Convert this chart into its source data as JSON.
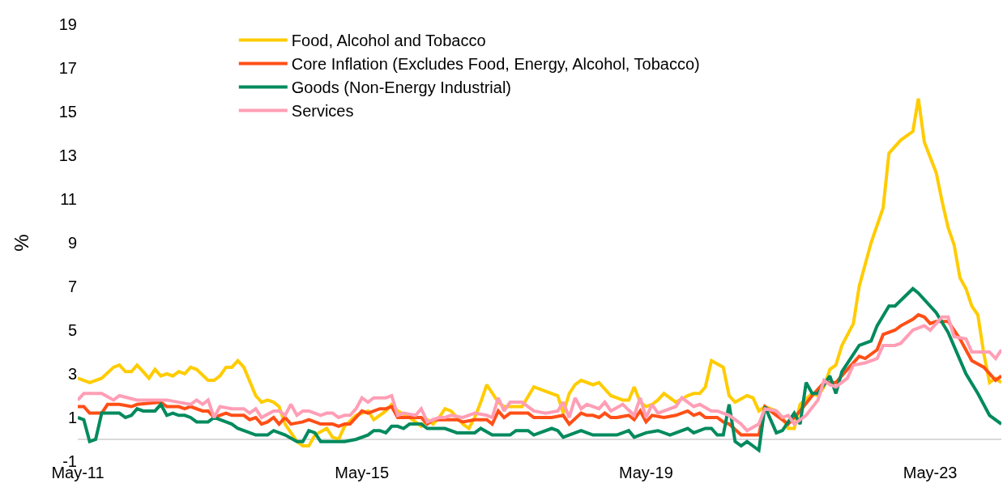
{
  "chart_data": {
    "type": "line",
    "ylabel": "%",
    "xlim": [
      "2011-05",
      "2024-05"
    ],
    "xticks": [
      {
        "value": "2011-05",
        "label": "May-11"
      },
      {
        "value": "2015-05",
        "label": "May-15"
      },
      {
        "value": "2019-05",
        "label": "May-19"
      },
      {
        "value": "2023-05",
        "label": "May-23"
      }
    ],
    "ylim": [
      -1,
      19
    ],
    "yticks": [
      -1,
      1,
      3,
      5,
      7,
      9,
      11,
      13,
      15,
      17,
      19
    ],
    "legend": "top left",
    "series": [
      {
        "name": "Food, Alcohol and Tobacco",
        "color": "#ffcc00",
        "x": [
          "2011-05",
          "2011-07",
          "2011-09",
          "2011-11",
          "2011-12",
          "2012-01",
          "2012-02",
          "2012-03",
          "2012-04",
          "2012-05",
          "2012-06",
          "2012-07",
          "2012-08",
          "2012-09",
          "2012-10",
          "2012-11",
          "2012-12",
          "2013-01",
          "2013-03",
          "2013-04",
          "2013-05",
          "2013-06",
          "2013-07",
          "2013-08",
          "2013-09",
          "2013-11",
          "2013-12",
          "2014-01",
          "2014-02",
          "2014-03",
          "2014-04",
          "2014-06",
          "2014-07",
          "2014-08",
          "2014-09",
          "2014-11",
          "2014-12",
          "2015-01",
          "2015-02",
          "2015-04",
          "2015-06",
          "2015-07",
          "2015-09",
          "2015-10",
          "2015-11",
          "2016-01",
          "2016-03",
          "2016-04",
          "2016-05",
          "2016-06",
          "2016-07",
          "2016-08",
          "2016-10",
          "2016-11",
          "2016-12",
          "2017-01",
          "2017-02",
          "2017-04",
          "2017-05",
          "2017-07",
          "2017-08",
          "2017-10",
          "2017-12",
          "2018-02",
          "2018-03",
          "2018-04",
          "2018-05",
          "2018-06",
          "2018-08",
          "2018-09",
          "2018-11",
          "2019-01",
          "2019-02",
          "2019-03",
          "2019-04",
          "2019-05",
          "2019-06",
          "2019-07",
          "2019-08",
          "2019-10",
          "2019-12",
          "2020-01",
          "2020-02",
          "2020-03",
          "2020-04",
          "2020-06",
          "2020-07",
          "2020-08",
          "2020-10",
          "2020-11",
          "2020-12",
          "2021-01",
          "2021-03",
          "2021-04",
          "2021-05",
          "2021-06",
          "2021-07",
          "2021-09",
          "2021-10",
          "2021-11",
          "2021-12",
          "2022-01",
          "2022-02",
          "2022-04",
          "2022-05",
          "2022-07",
          "2022-09",
          "2022-10",
          "2022-12",
          "2023-02",
          "2023-03",
          "2023-04",
          "2023-06",
          "2023-07",
          "2023-08",
          "2023-09",
          "2023-10",
          "2023-11",
          "2023-12",
          "2024-01",
          "2024-02",
          "2024-03",
          "2024-04",
          "2024-05"
        ],
        "values": [
          2.8,
          2.6,
          2.8,
          3.3,
          3.4,
          3.1,
          3.1,
          3.4,
          3.1,
          2.8,
          3.2,
          2.9,
          3.0,
          2.9,
          3.1,
          3.0,
          3.3,
          3.2,
          2.7,
          2.7,
          2.9,
          3.3,
          3.3,
          3.6,
          3.3,
          2.0,
          1.7,
          1.8,
          1.7,
          1.5,
          0.7,
          -0.1,
          -0.3,
          -0.3,
          0.2,
          0.5,
          0.1,
          0.0,
          0.6,
          1.1,
          1.3,
          0.9,
          1.3,
          1.6,
          1.3,
          1.0,
          0.6,
          0.9,
          0.7,
          1.0,
          1.4,
          1.3,
          0.7,
          0.5,
          1.0,
          1.7,
          2.5,
          1.7,
          1.5,
          1.5,
          1.5,
          2.4,
          2.2,
          2.0,
          1.2,
          2.1,
          2.5,
          2.7,
          2.5,
          2.6,
          2.0,
          1.8,
          1.8,
          2.4,
          1.7,
          1.5,
          1.6,
          1.8,
          2.1,
          1.7,
          2.0,
          2.1,
          2.1,
          2.4,
          3.6,
          3.3,
          2.0,
          1.7,
          2.0,
          1.9,
          1.3,
          1.5,
          1.3,
          1.0,
          0.5,
          0.5,
          1.6,
          2.1,
          2.0,
          2.4,
          3.2,
          3.4,
          4.3,
          5.3,
          7.0,
          9.0,
          10.6,
          13.1,
          13.7,
          14.1,
          15.6,
          13.6,
          12.2,
          10.9,
          9.7,
          8.9,
          7.4,
          6.9,
          6.1,
          5.7,
          3.9,
          2.6,
          2.8,
          2.6
        ]
      },
      {
        "name": "Core Inflation (Excludes Food, Energy, Alcohol, Tobacco)",
        "color": "#ff4f17",
        "x": [
          "2011-05",
          "2011-06",
          "2011-07",
          "2011-09",
          "2011-10",
          "2011-12",
          "2012-02",
          "2012-03",
          "2012-07",
          "2012-08",
          "2012-10",
          "2012-11",
          "2012-12",
          "2013-02",
          "2013-03",
          "2013-04",
          "2013-06",
          "2013-07",
          "2013-09",
          "2013-10",
          "2013-11",
          "2013-12",
          "2014-01",
          "2014-02",
          "2014-03",
          "2014-04",
          "2014-05",
          "2014-07",
          "2014-08",
          "2014-10",
          "2014-12",
          "2015-01",
          "2015-02",
          "2015-03",
          "2015-05",
          "2015-06",
          "2015-08",
          "2015-09",
          "2015-10",
          "2015-11",
          "2015-12",
          "2016-02",
          "2016-03",
          "2016-04",
          "2016-05",
          "2016-07",
          "2016-09",
          "2016-10",
          "2016-12",
          "2017-02",
          "2017-03",
          "2017-04",
          "2017-05",
          "2017-06",
          "2017-09",
          "2017-10",
          "2017-12",
          "2018-01",
          "2018-03",
          "2018-04",
          "2018-06",
          "2018-07",
          "2018-08",
          "2018-09",
          "2018-10",
          "2018-11",
          "2018-12",
          "2019-02",
          "2019-03",
          "2019-04",
          "2019-05",
          "2019-06",
          "2019-08",
          "2019-10",
          "2019-12",
          "2020-01",
          "2020-02",
          "2020-03",
          "2020-05",
          "2020-06",
          "2020-07",
          "2020-09",
          "2020-12",
          "2021-01",
          "2021-03",
          "2021-05",
          "2021-06",
          "2021-07",
          "2021-09",
          "2021-11",
          "2022-01",
          "2022-03",
          "2022-05",
          "2022-06",
          "2022-08",
          "2022-09",
          "2022-11",
          "2022-12",
          "2023-02",
          "2023-03",
          "2023-04",
          "2023-05",
          "2023-06",
          "2023-08",
          "2023-10",
          "2023-12",
          "2024-02",
          "2024-04",
          "2024-05"
        ],
        "values": [
          1.5,
          1.5,
          1.2,
          1.2,
          1.6,
          1.6,
          1.5,
          1.6,
          1.7,
          1.5,
          1.5,
          1.4,
          1.5,
          1.3,
          1.3,
          1.0,
          1.2,
          1.1,
          1.1,
          0.9,
          1.0,
          0.7,
          0.8,
          1.0,
          0.7,
          1.0,
          0.7,
          0.8,
          0.9,
          0.7,
          0.7,
          0.6,
          0.7,
          0.7,
          1.3,
          1.2,
          1.4,
          1.4,
          1.5,
          1.0,
          1.0,
          1.0,
          1.0,
          0.7,
          0.9,
          0.9,
          0.9,
          0.8,
          0.9,
          0.9,
          0.7,
          1.3,
          1.0,
          1.2,
          1.2,
          1.0,
          1.0,
          1.0,
          1.1,
          0.7,
          1.2,
          1.1,
          1.1,
          1.0,
          1.2,
          1.0,
          1.0,
          1.1,
          0.9,
          1.3,
          0.8,
          1.1,
          1.0,
          1.1,
          1.3,
          1.1,
          1.2,
          1.0,
          1.0,
          0.8,
          0.7,
          0.2,
          0.2,
          1.5,
          1.1,
          0.7,
          1.0,
          1.3,
          2.0,
          2.6,
          2.6,
          3.2,
          3.8,
          3.7,
          4.1,
          4.8,
          5.0,
          5.2,
          5.5,
          5.7,
          5.6,
          5.3,
          5.4,
          5.4,
          4.6,
          3.6,
          3.3,
          2.7,
          2.9
        ]
      },
      {
        "name": "Goods (Non-Energy Industrial)",
        "color": "#008a5e",
        "x": [
          "2011-05",
          "2011-06",
          "2011-07",
          "2011-08",
          "2011-09",
          "2011-12",
          "2012-01",
          "2012-02",
          "2012-03",
          "2012-04",
          "2012-06",
          "2012-07",
          "2012-08",
          "2012-09",
          "2012-10",
          "2012-11",
          "2012-12",
          "2013-01",
          "2013-03",
          "2013-04",
          "2013-05",
          "2013-06",
          "2013-07",
          "2013-08",
          "2013-09",
          "2013-11",
          "2014-01",
          "2014-02",
          "2014-04",
          "2014-06",
          "2014-07",
          "2014-08",
          "2014-09",
          "2014-10",
          "2014-12",
          "2015-02",
          "2015-04",
          "2015-06",
          "2015-07",
          "2015-08",
          "2015-09",
          "2015-10",
          "2015-11",
          "2015-12",
          "2016-01",
          "2016-03",
          "2016-04",
          "2016-06",
          "2016-07",
          "2016-09",
          "2016-12",
          "2017-01",
          "2017-03",
          "2017-06",
          "2017-07",
          "2017-09",
          "2017-10",
          "2018-01",
          "2018-02",
          "2018-03",
          "2018-04",
          "2018-06",
          "2018-07",
          "2018-08",
          "2018-12",
          "2019-02",
          "2019-03",
          "2019-05",
          "2019-07",
          "2019-09",
          "2019-12",
          "2020-01",
          "2020-03",
          "2020-04",
          "2020-05",
          "2020-06",
          "2020-07",
          "2020-08",
          "2020-09",
          "2020-10",
          "2020-12",
          "2021-01",
          "2021-03",
          "2021-04",
          "2021-06",
          "2021-07",
          "2021-08",
          "2021-09",
          "2021-10",
          "2021-12",
          "2022-01",
          "2022-02",
          "2022-05",
          "2022-07",
          "2022-08",
          "2022-10",
          "2022-11",
          "2023-02",
          "2023-03",
          "2023-06",
          "2023-08",
          "2023-11",
          "2024-01",
          "2024-03",
          "2024-05"
        ],
        "values": [
          1.0,
          0.9,
          -0.1,
          0.0,
          1.2,
          1.2,
          1.0,
          1.1,
          1.4,
          1.3,
          1.3,
          1.6,
          1.1,
          1.2,
          1.1,
          1.1,
          1.0,
          0.8,
          0.8,
          1.0,
          0.9,
          0.8,
          0.7,
          0.5,
          0.4,
          0.2,
          0.2,
          0.4,
          0.2,
          -0.1,
          -0.1,
          0.4,
          0.3,
          -0.1,
          -0.1,
          -0.1,
          0.0,
          0.2,
          0.4,
          0.4,
          0.3,
          0.6,
          0.6,
          0.5,
          0.7,
          0.7,
          0.5,
          0.5,
          0.5,
          0.3,
          0.3,
          0.5,
          0.2,
          0.2,
          0.4,
          0.4,
          0.2,
          0.5,
          0.4,
          0.1,
          0.2,
          0.4,
          0.3,
          0.2,
          0.2,
          0.4,
          0.1,
          0.3,
          0.4,
          0.2,
          0.5,
          0.3,
          0.5,
          0.5,
          0.2,
          0.2,
          1.6,
          -0.1,
          -0.3,
          -0.1,
          -0.5,
          1.5,
          0.3,
          0.4,
          1.2,
          0.7,
          2.6,
          2.1,
          2.1,
          2.9,
          2.1,
          3.1,
          4.3,
          4.5,
          5.2,
          6.1,
          6.1,
          6.9,
          6.7,
          5.8,
          4.9,
          3.0,
          2.1,
          1.1,
          0.7
        ]
      },
      {
        "name": "Services",
        "color": "#ff9eb5",
        "x": [
          "2011-05",
          "2011-06",
          "2011-09",
          "2011-11",
          "2011-12",
          "2012-03",
          "2012-05",
          "2012-08",
          "2012-10",
          "2012-12",
          "2013-01",
          "2013-02",
          "2013-03",
          "2013-04",
          "2013-05",
          "2013-07",
          "2013-09",
          "2013-10",
          "2013-11",
          "2013-12",
          "2014-02",
          "2014-03",
          "2014-04",
          "2014-05",
          "2014-06",
          "2014-07",
          "2014-08",
          "2014-10",
          "2014-11",
          "2014-12",
          "2015-01",
          "2015-02",
          "2015-03",
          "2015-04",
          "2015-05",
          "2015-06",
          "2015-07",
          "2015-09",
          "2015-10",
          "2015-11",
          "2015-12",
          "2016-02",
          "2016-03",
          "2016-04",
          "2016-06",
          "2016-07",
          "2016-08",
          "2016-10",
          "2016-12",
          "2017-02",
          "2017-03",
          "2017-04",
          "2017-05",
          "2017-06",
          "2017-08",
          "2017-10",
          "2017-12",
          "2018-02",
          "2018-03",
          "2018-04",
          "2018-05",
          "2018-06",
          "2018-07",
          "2018-09",
          "2018-10",
          "2018-11",
          "2019-01",
          "2019-03",
          "2019-04",
          "2019-05",
          "2019-06",
          "2019-07",
          "2019-08",
          "2019-10",
          "2019-11",
          "2020-01",
          "2020-02",
          "2020-04",
          "2020-05",
          "2020-07",
          "2020-09",
          "2020-10",
          "2020-12",
          "2021-01",
          "2021-03",
          "2021-04",
          "2021-05",
          "2021-06",
          "2021-08",
          "2021-10",
          "2021-11",
          "2021-12",
          "2022-01",
          "2022-03",
          "2022-04",
          "2022-06",
          "2022-08",
          "2022-09",
          "2022-11",
          "2022-12",
          "2023-02",
          "2023-04",
          "2023-05",
          "2023-07",
          "2023-08",
          "2023-09",
          "2023-11",
          "2023-12",
          "2024-03",
          "2024-04",
          "2024-05"
        ],
        "values": [
          1.8,
          2.1,
          2.1,
          1.8,
          2.0,
          1.8,
          1.8,
          1.8,
          1.7,
          1.6,
          1.8,
          1.6,
          1.8,
          1.0,
          1.5,
          1.4,
          1.4,
          1.2,
          1.4,
          1.0,
          1.3,
          1.3,
          1.1,
          1.6,
          1.1,
          1.3,
          1.3,
          1.1,
          1.2,
          1.2,
          1.0,
          1.1,
          1.1,
          1.4,
          1.9,
          1.7,
          1.9,
          1.9,
          2.0,
          1.1,
          1.2,
          1.1,
          1.4,
          0.8,
          1.0,
          1.0,
          1.1,
          1.0,
          1.2,
          1.1,
          1.0,
          1.9,
          1.3,
          1.7,
          1.7,
          1.3,
          1.2,
          1.3,
          1.7,
          1.0,
          1.9,
          1.4,
          1.6,
          1.4,
          1.7,
          1.3,
          1.6,
          1.1,
          1.9,
          1.0,
          1.6,
          1.2,
          1.3,
          1.5,
          1.9,
          1.5,
          1.6,
          1.3,
          1.3,
          1.1,
          0.7,
          0.4,
          0.7,
          1.4,
          1.3,
          1.0,
          1.1,
          0.7,
          1.1,
          1.8,
          2.7,
          2.5,
          2.4,
          2.8,
          3.4,
          3.5,
          3.7,
          4.3,
          4.3,
          4.4,
          5.0,
          5.2,
          5.0,
          5.6,
          5.6,
          4.7,
          4.6,
          4.0,
          4.0,
          3.7,
          4.1
        ]
      }
    ]
  }
}
